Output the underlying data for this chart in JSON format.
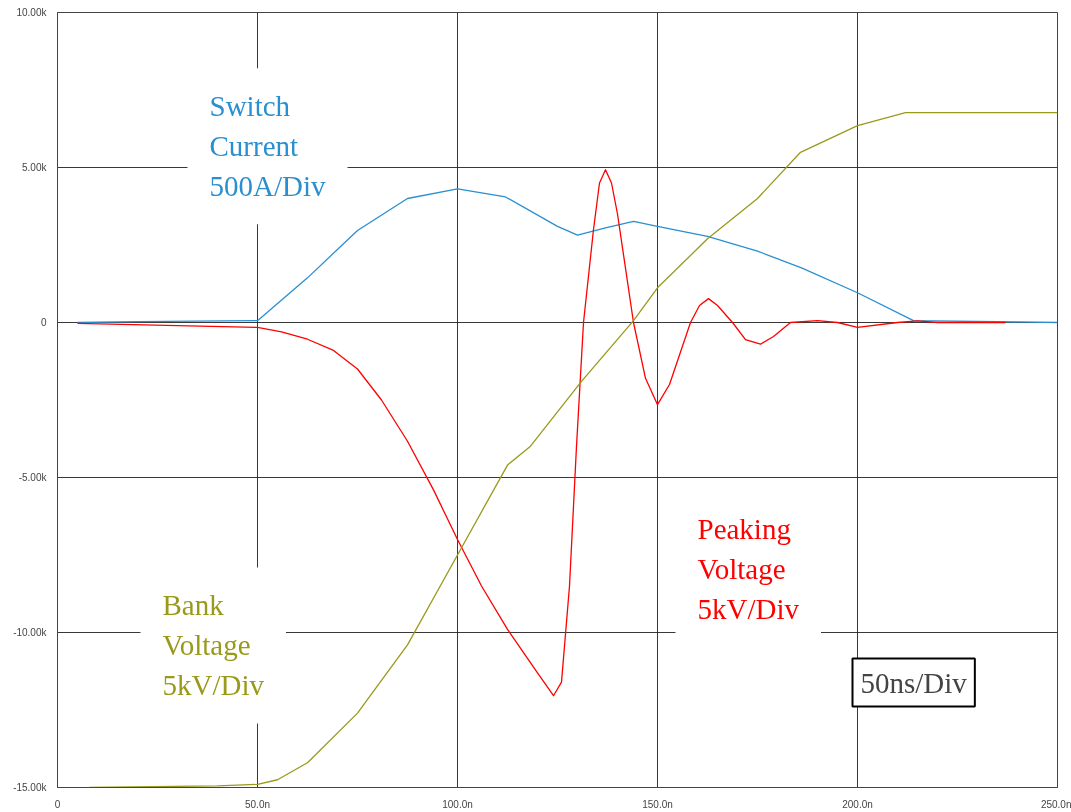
{
  "chart_data": {
    "type": "line",
    "xlim": [
      0,
      250
    ],
    "ylim": [
      -15000,
      10000
    ],
    "xticks": [
      0,
      {
        "value": 50,
        "label": "50.0n"
      },
      {
        "value": 100,
        "label": "100.0n"
      },
      {
        "value": 150,
        "label": "150.0n"
      },
      {
        "value": 200,
        "label": "200.0n"
      },
      {
        "value": 250,
        "label": "250.0n"
      }
    ],
    "yticks": [
      {
        "value": -15000,
        "label": "-15.00k"
      },
      {
        "value": -10000,
        "label": "-10.00k"
      },
      {
        "value": -5000,
        "label": "-5.00k"
      },
      0,
      {
        "value": 5000,
        "label": "5.00k"
      },
      {
        "value": 10000,
        "label": "10.00k"
      }
    ],
    "grid": true,
    "line_style": "solid",
    "annotations": [
      "50ns/Div"
    ],
    "series": [
      {
        "name": "Switch Current 500A/Div",
        "color": "#2a8fd0",
        "x": [
          5,
          20,
          49,
          50,
          62.5,
          75,
          87.5,
          100,
          112,
          125,
          130,
          137,
          144,
          150,
          162.5,
          175,
          186,
          200,
          214,
          250
        ],
        "values": [
          0,
          30,
          60,
          60,
          1440,
          2970,
          4000,
          4310,
          4050,
          3100,
          2820,
          3050,
          3260,
          3100,
          2780,
          2300,
          1760,
          960,
          60,
          0
        ]
      },
      {
        "name": "Peaking Voltage 5kV/Div",
        "color": "#ff0000",
        "x": [
          5,
          30,
          50,
          56,
          62.5,
          69,
          75,
          81,
          87.5,
          94,
          100,
          106,
          112.5,
          120,
          124,
          126,
          128,
          129.75,
          131.5,
          134,
          135.5,
          137,
          138.5,
          140,
          144,
          147,
          150,
          153,
          158.25,
          160.5,
          162.75,
          165,
          168.75,
          172,
          175.75,
          179,
          183.25,
          190,
          195,
          200,
          210,
          215,
          220,
          237
        ],
        "values": [
          -30,
          -100,
          -160,
          -300,
          -540,
          -900,
          -1500,
          -2500,
          -3830,
          -5400,
          -7000,
          -8500,
          -9900,
          -11300,
          -12040,
          -11600,
          -8500,
          -3990,
          0,
          3000,
          4500,
          4930,
          4500,
          3500,
          0,
          -1800,
          -2650,
          -2000,
          0,
          550,
          770,
          550,
          0,
          -550,
          -700,
          -450,
          0,
          60,
          0,
          -160,
          0,
          50,
          0,
          0
        ]
      },
      {
        "name": "Bank Voltage 5kV/Div",
        "color": "#999a1a",
        "x": [
          8,
          40,
          50,
          55,
          62.5,
          75,
          87.5,
          100,
          112.5,
          118.25,
          131,
          144,
          150,
          162.5,
          175,
          185.75,
          200,
          212,
          250
        ],
        "values": [
          -15000,
          -14950,
          -14900,
          -14750,
          -14200,
          -12600,
          -10400,
          -7500,
          -4600,
          -3990,
          -1900,
          60,
          1120,
          2700,
          4000,
          5490,
          6350,
          6770,
          6770
        ]
      }
    ]
  }
}
